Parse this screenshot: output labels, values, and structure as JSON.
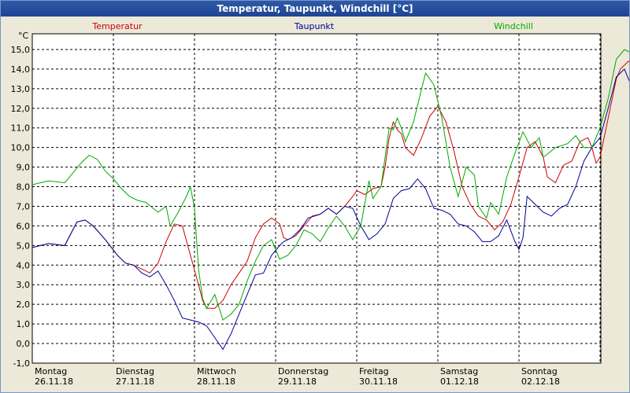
{
  "window": {
    "title": "Temperatur, Taupunkt, Windchill [°C]"
  },
  "chart_data": {
    "type": "line",
    "title": "Temperatur, Taupunkt, Windchill [°C]",
    "ylabel": "°C",
    "ylim": [
      -1.0,
      15.8
    ],
    "yticks": [
      "-1,0",
      "0,0",
      "1,0",
      "2,0",
      "3,0",
      "4,0",
      "5,0",
      "6,0",
      "7,0",
      "8,0",
      "9,0",
      "10,0",
      "11,0",
      "12,0",
      "13,0",
      "14,0",
      "15,0"
    ],
    "xlim": [
      0,
      7.3
    ],
    "xticks": [
      {
        "day": "Montag",
        "date": "26.11.18",
        "x": 0
      },
      {
        "day": "Dienstag",
        "date": "27.11.18",
        "x": 1
      },
      {
        "day": "Mittwoch",
        "date": "28.11.18",
        "x": 2
      },
      {
        "day": "Donnerstag",
        "date": "29.11.18",
        "x": 3
      },
      {
        "day": "Freitag",
        "date": "30.11.18",
        "x": 4
      },
      {
        "day": "Samstag",
        "date": "01.12.18",
        "x": 5
      },
      {
        "day": "Sonntag",
        "date": "02.12.18",
        "x": 6
      }
    ],
    "grid": true,
    "legend_position": "top",
    "series": [
      {
        "name": "Temperatur",
        "color": "#cc0000",
        "points": [
          [
            0.0,
            4.9
          ],
          [
            0.2,
            5.1
          ],
          [
            0.4,
            5.0
          ],
          [
            0.55,
            6.2
          ],
          [
            0.65,
            6.3
          ],
          [
            0.75,
            6.0
          ],
          [
            0.9,
            5.3
          ],
          [
            1.05,
            4.5
          ],
          [
            1.15,
            4.1
          ],
          [
            1.25,
            4.0
          ],
          [
            1.35,
            3.8
          ],
          [
            1.45,
            3.6
          ],
          [
            1.55,
            4.1
          ],
          [
            1.65,
            5.2
          ],
          [
            1.75,
            6.1
          ],
          [
            1.85,
            6.0
          ],
          [
            1.95,
            4.5
          ],
          [
            2.05,
            3.0
          ],
          [
            2.1,
            2.2
          ],
          [
            2.15,
            1.8
          ],
          [
            2.25,
            1.8
          ],
          [
            2.35,
            2.2
          ],
          [
            2.45,
            3.0
          ],
          [
            2.55,
            3.6
          ],
          [
            2.65,
            4.2
          ],
          [
            2.75,
            5.4
          ],
          [
            2.85,
            6.1
          ],
          [
            2.95,
            6.4
          ],
          [
            3.05,
            6.1
          ],
          [
            3.1,
            5.4
          ],
          [
            3.15,
            5.3
          ],
          [
            3.25,
            5.5
          ],
          [
            3.35,
            6.0
          ],
          [
            3.45,
            6.5
          ],
          [
            3.55,
            6.6
          ],
          [
            3.65,
            6.9
          ],
          [
            3.75,
            6.6
          ],
          [
            3.85,
            7.0
          ],
          [
            3.95,
            7.5
          ],
          [
            4.0,
            7.8
          ],
          [
            4.1,
            7.6
          ],
          [
            4.2,
            7.9
          ],
          [
            4.3,
            8.0
          ],
          [
            4.35,
            9.0
          ],
          [
            4.4,
            10.5
          ],
          [
            4.45,
            11.3
          ],
          [
            4.5,
            10.9
          ],
          [
            4.55,
            10.7
          ],
          [
            4.6,
            10.0
          ],
          [
            4.7,
            9.6
          ],
          [
            4.8,
            10.5
          ],
          [
            4.9,
            11.6
          ],
          [
            5.0,
            12.1
          ],
          [
            5.1,
            11.3
          ],
          [
            5.2,
            9.8
          ],
          [
            5.3,
            8.0
          ],
          [
            5.4,
            7.1
          ],
          [
            5.5,
            6.5
          ],
          [
            5.6,
            6.3
          ],
          [
            5.7,
            5.8
          ],
          [
            5.8,
            6.2
          ],
          [
            5.9,
            7.1
          ],
          [
            6.0,
            8.5
          ],
          [
            6.1,
            10.0
          ],
          [
            6.2,
            10.3
          ],
          [
            6.3,
            9.5
          ],
          [
            6.35,
            8.5
          ],
          [
            6.45,
            8.2
          ],
          [
            6.55,
            9.1
          ],
          [
            6.65,
            9.3
          ],
          [
            6.75,
            10.3
          ],
          [
            6.85,
            10.5
          ],
          [
            6.9,
            10.0
          ],
          [
            6.95,
            9.2
          ],
          [
            7.0,
            9.5
          ],
          [
            7.1,
            11.5
          ],
          [
            7.2,
            13.5
          ],
          [
            7.25,
            14.0
          ],
          [
            7.35,
            14.4
          ],
          [
            7.45,
            14.2
          ],
          [
            7.55,
            14.0
          ],
          [
            7.65,
            13.6
          ],
          [
            7.72,
            13.5
          ]
        ]
      },
      {
        "name": "Taupunkt",
        "color": "#000099",
        "points": [
          [
            0.0,
            4.9
          ],
          [
            0.2,
            5.1
          ],
          [
            0.4,
            5.0
          ],
          [
            0.55,
            6.2
          ],
          [
            0.65,
            6.3
          ],
          [
            0.75,
            6.0
          ],
          [
            0.9,
            5.3
          ],
          [
            1.05,
            4.5
          ],
          [
            1.15,
            4.1
          ],
          [
            1.25,
            4.0
          ],
          [
            1.35,
            3.6
          ],
          [
            1.45,
            3.4
          ],
          [
            1.55,
            3.7
          ],
          [
            1.65,
            3.0
          ],
          [
            1.75,
            2.2
          ],
          [
            1.85,
            1.3
          ],
          [
            1.95,
            1.2
          ],
          [
            2.05,
            1.1
          ],
          [
            2.15,
            0.9
          ],
          [
            2.25,
            0.3
          ],
          [
            2.35,
            -0.3
          ],
          [
            2.45,
            0.5
          ],
          [
            2.55,
            1.5
          ],
          [
            2.65,
            2.5
          ],
          [
            2.75,
            3.5
          ],
          [
            2.85,
            3.6
          ],
          [
            2.95,
            4.5
          ],
          [
            3.05,
            5.0
          ],
          [
            3.1,
            5.2
          ],
          [
            3.2,
            5.4
          ],
          [
            3.3,
            5.8
          ],
          [
            3.4,
            6.4
          ],
          [
            3.55,
            6.6
          ],
          [
            3.65,
            6.9
          ],
          [
            3.75,
            6.6
          ],
          [
            3.85,
            7.0
          ],
          [
            3.95,
            6.9
          ],
          [
            4.05,
            6.0
          ],
          [
            4.15,
            5.3
          ],
          [
            4.25,
            5.6
          ],
          [
            4.35,
            6.1
          ],
          [
            4.45,
            7.4
          ],
          [
            4.55,
            7.8
          ],
          [
            4.65,
            7.9
          ],
          [
            4.75,
            8.4
          ],
          [
            4.85,
            7.9
          ],
          [
            4.95,
            6.9
          ],
          [
            5.05,
            6.8
          ],
          [
            5.15,
            6.6
          ],
          [
            5.25,
            6.1
          ],
          [
            5.35,
            6.0
          ],
          [
            5.45,
            5.7
          ],
          [
            5.55,
            5.2
          ],
          [
            5.65,
            5.2
          ],
          [
            5.75,
            5.5
          ],
          [
            5.85,
            6.3
          ],
          [
            5.95,
            5.2
          ],
          [
            6.0,
            4.8
          ],
          [
            6.05,
            5.4
          ],
          [
            6.1,
            7.5
          ],
          [
            6.2,
            7.1
          ],
          [
            6.3,
            6.7
          ],
          [
            6.4,
            6.5
          ],
          [
            6.5,
            6.9
          ],
          [
            6.6,
            7.1
          ],
          [
            6.7,
            8.0
          ],
          [
            6.8,
            9.3
          ],
          [
            6.9,
            10.0
          ],
          [
            7.0,
            10.5
          ],
          [
            7.1,
            12.0
          ],
          [
            7.2,
            13.6
          ],
          [
            7.3,
            14.0
          ],
          [
            7.4,
            13.0
          ],
          [
            7.5,
            13.4
          ],
          [
            7.6,
            12.8
          ],
          [
            7.7,
            13.1
          ]
        ]
      },
      {
        "name": "Windchill",
        "color": "#00aa00",
        "points": [
          [
            0.0,
            8.1
          ],
          [
            0.2,
            8.3
          ],
          [
            0.4,
            8.2
          ],
          [
            0.6,
            9.2
          ],
          [
            0.7,
            9.6
          ],
          [
            0.8,
            9.4
          ],
          [
            0.9,
            8.8
          ],
          [
            1.0,
            8.4
          ],
          [
            1.1,
            7.9
          ],
          [
            1.2,
            7.5
          ],
          [
            1.3,
            7.3
          ],
          [
            1.4,
            7.2
          ],
          [
            1.55,
            6.7
          ],
          [
            1.65,
            7.0
          ],
          [
            1.7,
            6.0
          ],
          [
            1.8,
            6.7
          ],
          [
            1.9,
            7.5
          ],
          [
            1.95,
            8.0
          ],
          [
            2.0,
            6.9
          ],
          [
            2.05,
            3.8
          ],
          [
            2.1,
            2.3
          ],
          [
            2.15,
            1.8
          ],
          [
            2.25,
            2.5
          ],
          [
            2.35,
            1.2
          ],
          [
            2.45,
            1.5
          ],
          [
            2.55,
            2.0
          ],
          [
            2.65,
            3.2
          ],
          [
            2.75,
            4.2
          ],
          [
            2.85,
            5.0
          ],
          [
            2.95,
            5.3
          ],
          [
            3.05,
            4.3
          ],
          [
            3.15,
            4.5
          ],
          [
            3.25,
            5.0
          ],
          [
            3.35,
            5.8
          ],
          [
            3.45,
            5.6
          ],
          [
            3.55,
            5.2
          ],
          [
            3.65,
            5.9
          ],
          [
            3.75,
            6.5
          ],
          [
            3.85,
            6.0
          ],
          [
            3.95,
            5.3
          ],
          [
            4.05,
            6.0
          ],
          [
            4.15,
            8.3
          ],
          [
            4.2,
            7.4
          ],
          [
            4.3,
            8.0
          ],
          [
            4.35,
            9.5
          ],
          [
            4.4,
            11.0
          ],
          [
            4.45,
            10.9
          ],
          [
            4.5,
            11.5
          ],
          [
            4.55,
            11.0
          ],
          [
            4.6,
            10.3
          ],
          [
            4.7,
            11.3
          ],
          [
            4.8,
            13.0
          ],
          [
            4.85,
            13.8
          ],
          [
            4.95,
            13.2
          ],
          [
            5.05,
            11.5
          ],
          [
            5.15,
            9.0
          ],
          [
            5.25,
            7.5
          ],
          [
            5.35,
            9.0
          ],
          [
            5.45,
            8.6
          ],
          [
            5.5,
            7.0
          ],
          [
            5.6,
            6.4
          ],
          [
            5.65,
            7.2
          ],
          [
            5.75,
            6.6
          ],
          [
            5.85,
            8.5
          ],
          [
            5.95,
            9.7
          ],
          [
            6.05,
            10.8
          ],
          [
            6.15,
            10.0
          ],
          [
            6.25,
            10.5
          ],
          [
            6.3,
            9.5
          ],
          [
            6.45,
            10.0
          ],
          [
            6.6,
            10.2
          ],
          [
            6.7,
            10.6
          ],
          [
            6.8,
            10.0
          ],
          [
            6.9,
            10.0
          ],
          [
            7.0,
            11.0
          ],
          [
            7.1,
            12.5
          ],
          [
            7.2,
            14.5
          ],
          [
            7.3,
            15.0
          ],
          [
            7.4,
            14.8
          ],
          [
            7.5,
            14.5
          ],
          [
            7.6,
            15.2
          ],
          [
            7.7,
            14.0
          ],
          [
            7.72,
            13.7
          ]
        ]
      }
    ]
  }
}
